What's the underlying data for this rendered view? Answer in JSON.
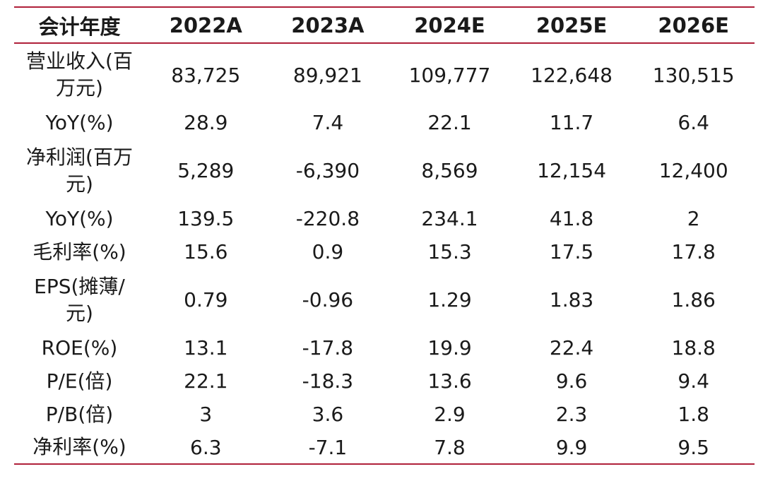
{
  "header": {
    "label": "会计年度",
    "years": [
      "2022A",
      "2023A",
      "2024E",
      "2025E",
      "2026E"
    ]
  },
  "rows": [
    {
      "label": "营业收入(百万元)",
      "values": [
        "83,725",
        "89,921",
        "109,777",
        "122,648",
        "130,515"
      ]
    },
    {
      "label": "YoY(%)",
      "values": [
        "28.9",
        "7.4",
        "22.1",
        "11.7",
        "6.4"
      ]
    },
    {
      "label": "净利润(百万元)",
      "values": [
        "5,289",
        "-6,390",
        "8,569",
        "12,154",
        "12,400"
      ]
    },
    {
      "label": "YoY(%)",
      "values": [
        "139.5",
        "-220.8",
        "234.1",
        "41.8",
        "2"
      ]
    },
    {
      "label": "毛利率(%)",
      "values": [
        "15.6",
        "0.9",
        "15.3",
        "17.5",
        "17.8"
      ]
    },
    {
      "label": "EPS(摊薄/元)",
      "values": [
        "0.79",
        "-0.96",
        "1.29",
        "1.83",
        "1.86"
      ]
    },
    {
      "label": "ROE(%)",
      "values": [
        "13.1",
        "-17.8",
        "19.9",
        "22.4",
        "18.8"
      ]
    },
    {
      "label": "P/E(倍)",
      "values": [
        "22.1",
        "-18.3",
        "13.6",
        "9.6",
        "9.4"
      ]
    },
    {
      "label": "P/B(倍)",
      "values": [
        "3",
        "3.6",
        "2.9",
        "2.3",
        "1.8"
      ]
    },
    {
      "label": "净利率(%)",
      "values": [
        "6.3",
        "-7.1",
        "7.8",
        "9.9",
        "9.5"
      ]
    }
  ],
  "colors": {
    "rule": "#b0203a",
    "text": "#1a1a1a"
  }
}
